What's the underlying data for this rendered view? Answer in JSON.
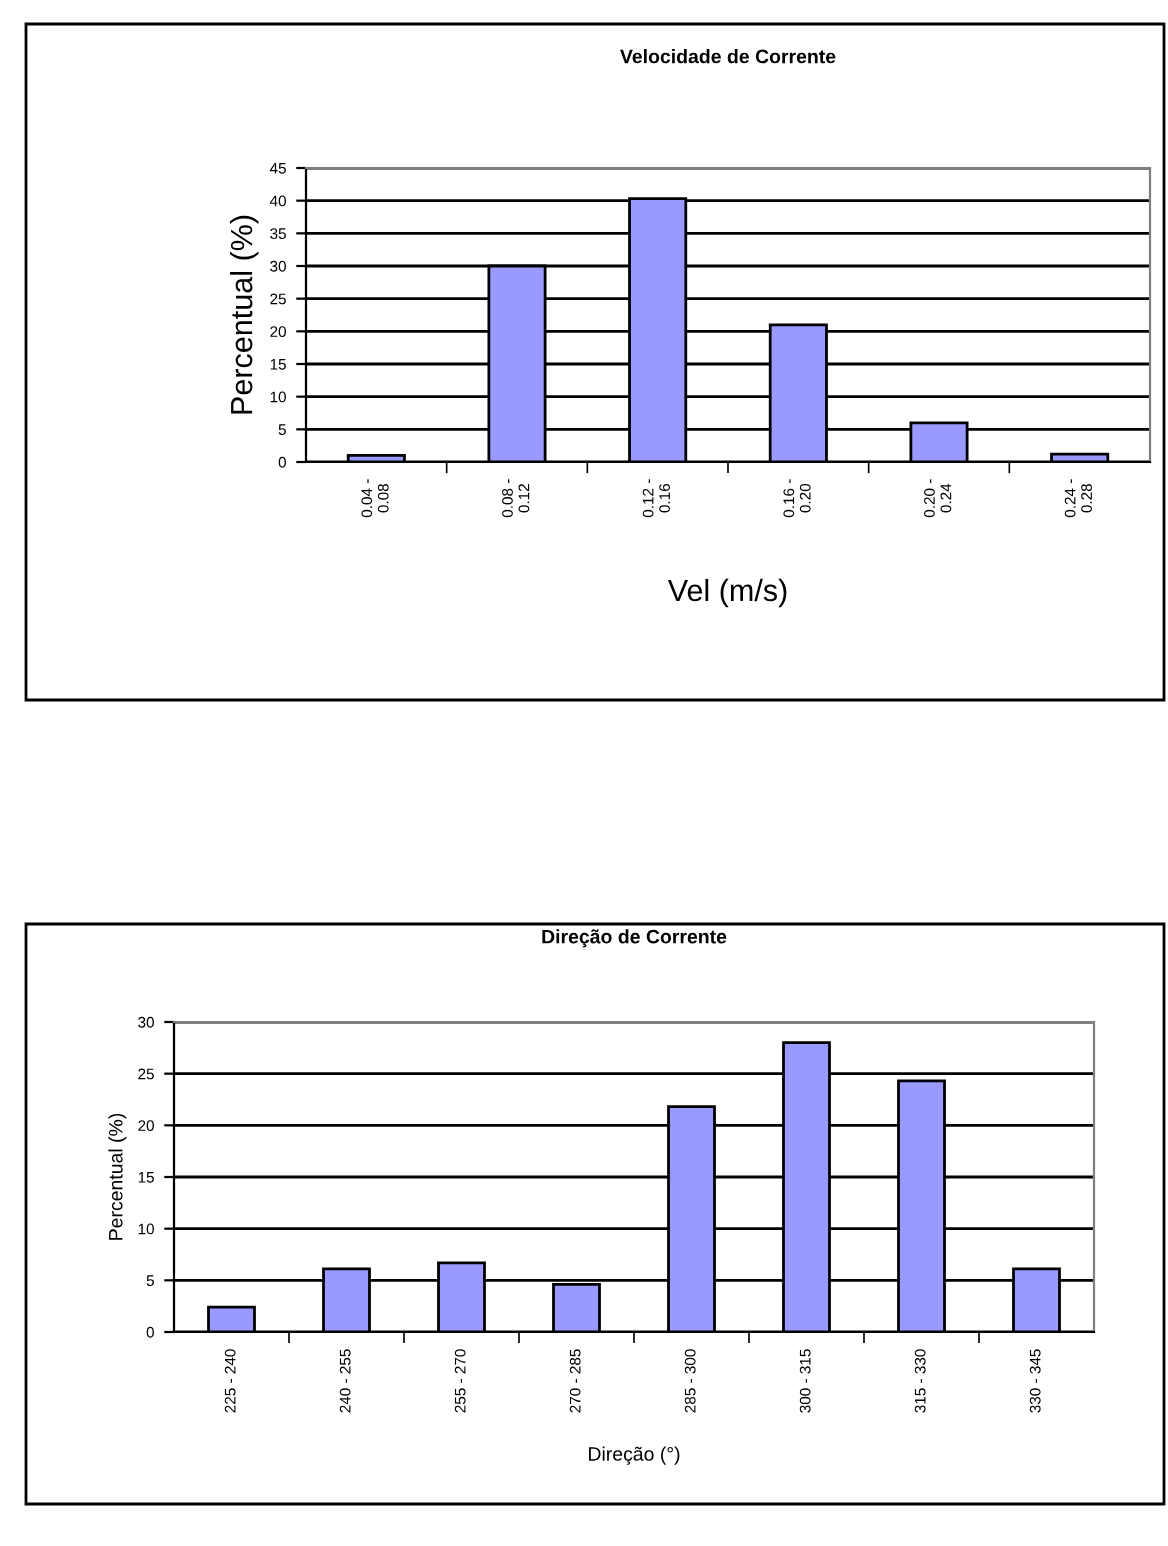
{
  "chart_data": [
    {
      "type": "bar",
      "title": "Velocidade de Corrente",
      "xlabel": "Vel (m/s)",
      "ylabel": "Percentual (%)",
      "categories": [
        "0.04 -\n0.08",
        "0.08 -\n0.12",
        "0.12 -\n0.16",
        "0.16 -\n0.20",
        "0.20 -\n0.24",
        "0.24 -\n0.28"
      ],
      "values": [
        1,
        30,
        40.3,
        21,
        6,
        1.2
      ],
      "color": "#9999ff",
      "ylim": [
        0,
        45
      ],
      "yticks": [
        0,
        5,
        10,
        15,
        20,
        25,
        30,
        35,
        40,
        45
      ],
      "grid": "y"
    },
    {
      "type": "bar",
      "title": "Direção de Corrente",
      "xlabel": "Direção (°)",
      "ylabel": "Percentual (%)",
      "categories": [
        "225 - 240",
        "240 - 255",
        "255 - 270",
        "270 - 285",
        "285 - 300",
        "300 - 315",
        "315 - 330",
        "330 - 345"
      ],
      "values": [
        2.4,
        6.1,
        6.7,
        4.6,
        21.8,
        28,
        24.3,
        6.1
      ],
      "color": "#9999ff",
      "ylim": [
        0,
        30
      ],
      "yticks": [
        0,
        5,
        10,
        15,
        20,
        25,
        30
      ],
      "grid": "y"
    }
  ]
}
